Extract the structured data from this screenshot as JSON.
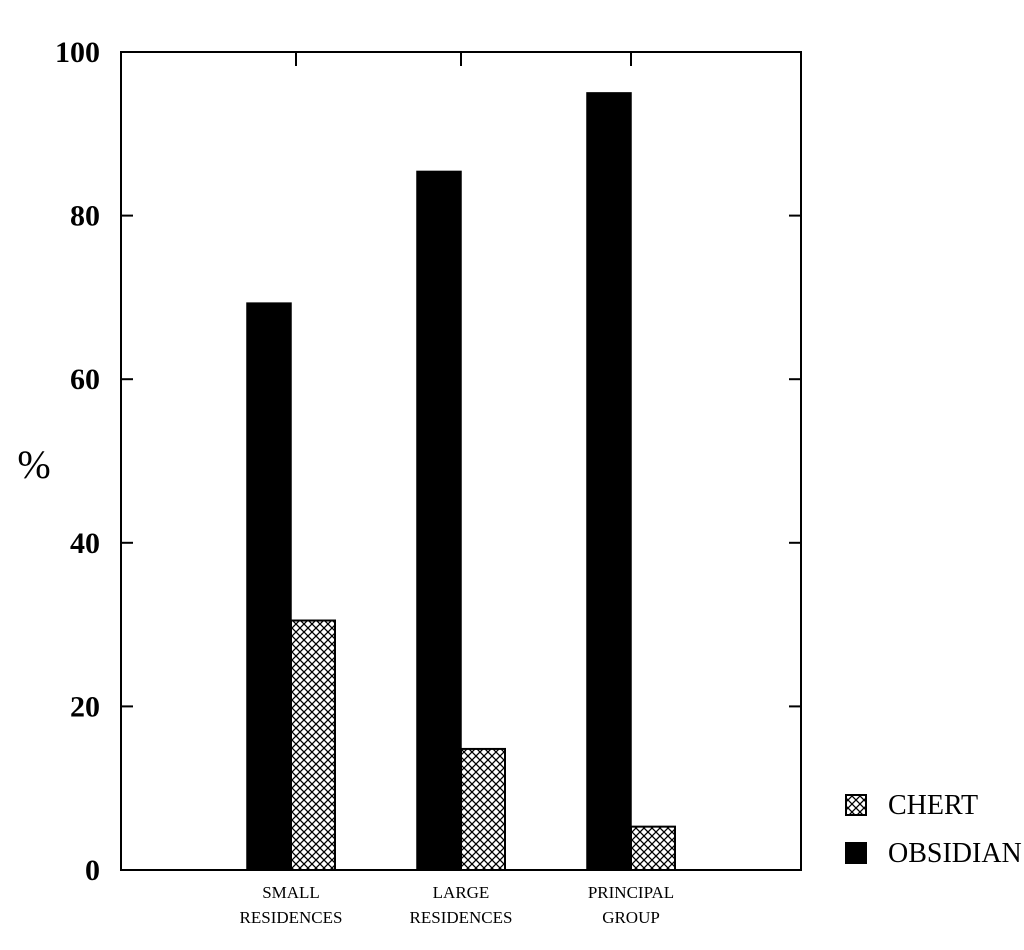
{
  "chart_data": {
    "type": "bar",
    "title": "",
    "xlabel": "",
    "ylabel": "%",
    "ylim": [
      0,
      100
    ],
    "yticks": [
      0,
      20,
      40,
      60,
      80,
      100
    ],
    "grid": false,
    "legend_position": "bottom-right, outside plot",
    "categories": [
      [
        "SMALL",
        "RESIDENCES"
      ],
      [
        "LARGE",
        "RESIDENCES"
      ],
      [
        "PRINCIPAL",
        "GROUP"
      ]
    ],
    "series": [
      {
        "name": "OBSIDIAN",
        "values": [
          69.3,
          85.4,
          95.0
        ],
        "fill": "solid",
        "color": "#000000"
      },
      {
        "name": "CHERT",
        "values": [
          30.5,
          14.8,
          5.3
        ],
        "fill": "crosshatch",
        "color": "#000000"
      }
    ],
    "legend_order": [
      "CHERT",
      "OBSIDIAN"
    ]
  }
}
